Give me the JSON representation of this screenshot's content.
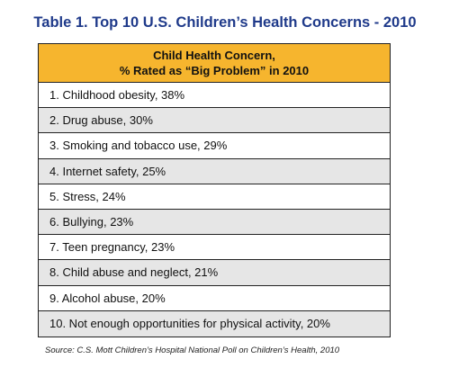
{
  "title": "Table 1. Top 10 U.S. Children’s Health Concerns - 2010",
  "header": {
    "line1": "Child Health Concern,",
    "line2": "% Rated as “Big Problem” in 2010"
  },
  "rows": [
    "1. Childhood obesity, 38%",
    "2. Drug abuse, 30%",
    "3. Smoking and tobacco use, 29%",
    "4. Internet safety, 25%",
    "5. Stress,  24%",
    "6. Bullying, 23%",
    "7. Teen pregnancy, 23%",
    "8. Child abuse and neglect, 21%",
    "9. Alcohol abuse, 20%",
    "10.  Not enough opportunities for physical activity, 20%"
  ],
  "source": "Source: C.S. Mott Children’s Hospital National Poll on Children’s Health, 2010",
  "chart_data": {
    "type": "table",
    "title": "Table 1. Top 10 U.S. Children’s Health Concerns - 2010",
    "columns": [
      "Child Health Concern, % Rated as “Big Problem” in 2010"
    ],
    "categories": [
      "Childhood obesity",
      "Drug abuse",
      "Smoking and tobacco use",
      "Internet safety",
      "Stress",
      "Bullying",
      "Teen pregnancy",
      "Child abuse and neglect",
      "Alcohol abuse",
      "Not enough opportunities for physical activity"
    ],
    "values": [
      38,
      30,
      29,
      25,
      24,
      23,
      23,
      21,
      20,
      20
    ],
    "header_color": "#f6b52e",
    "title_color": "#1f3a8a"
  }
}
